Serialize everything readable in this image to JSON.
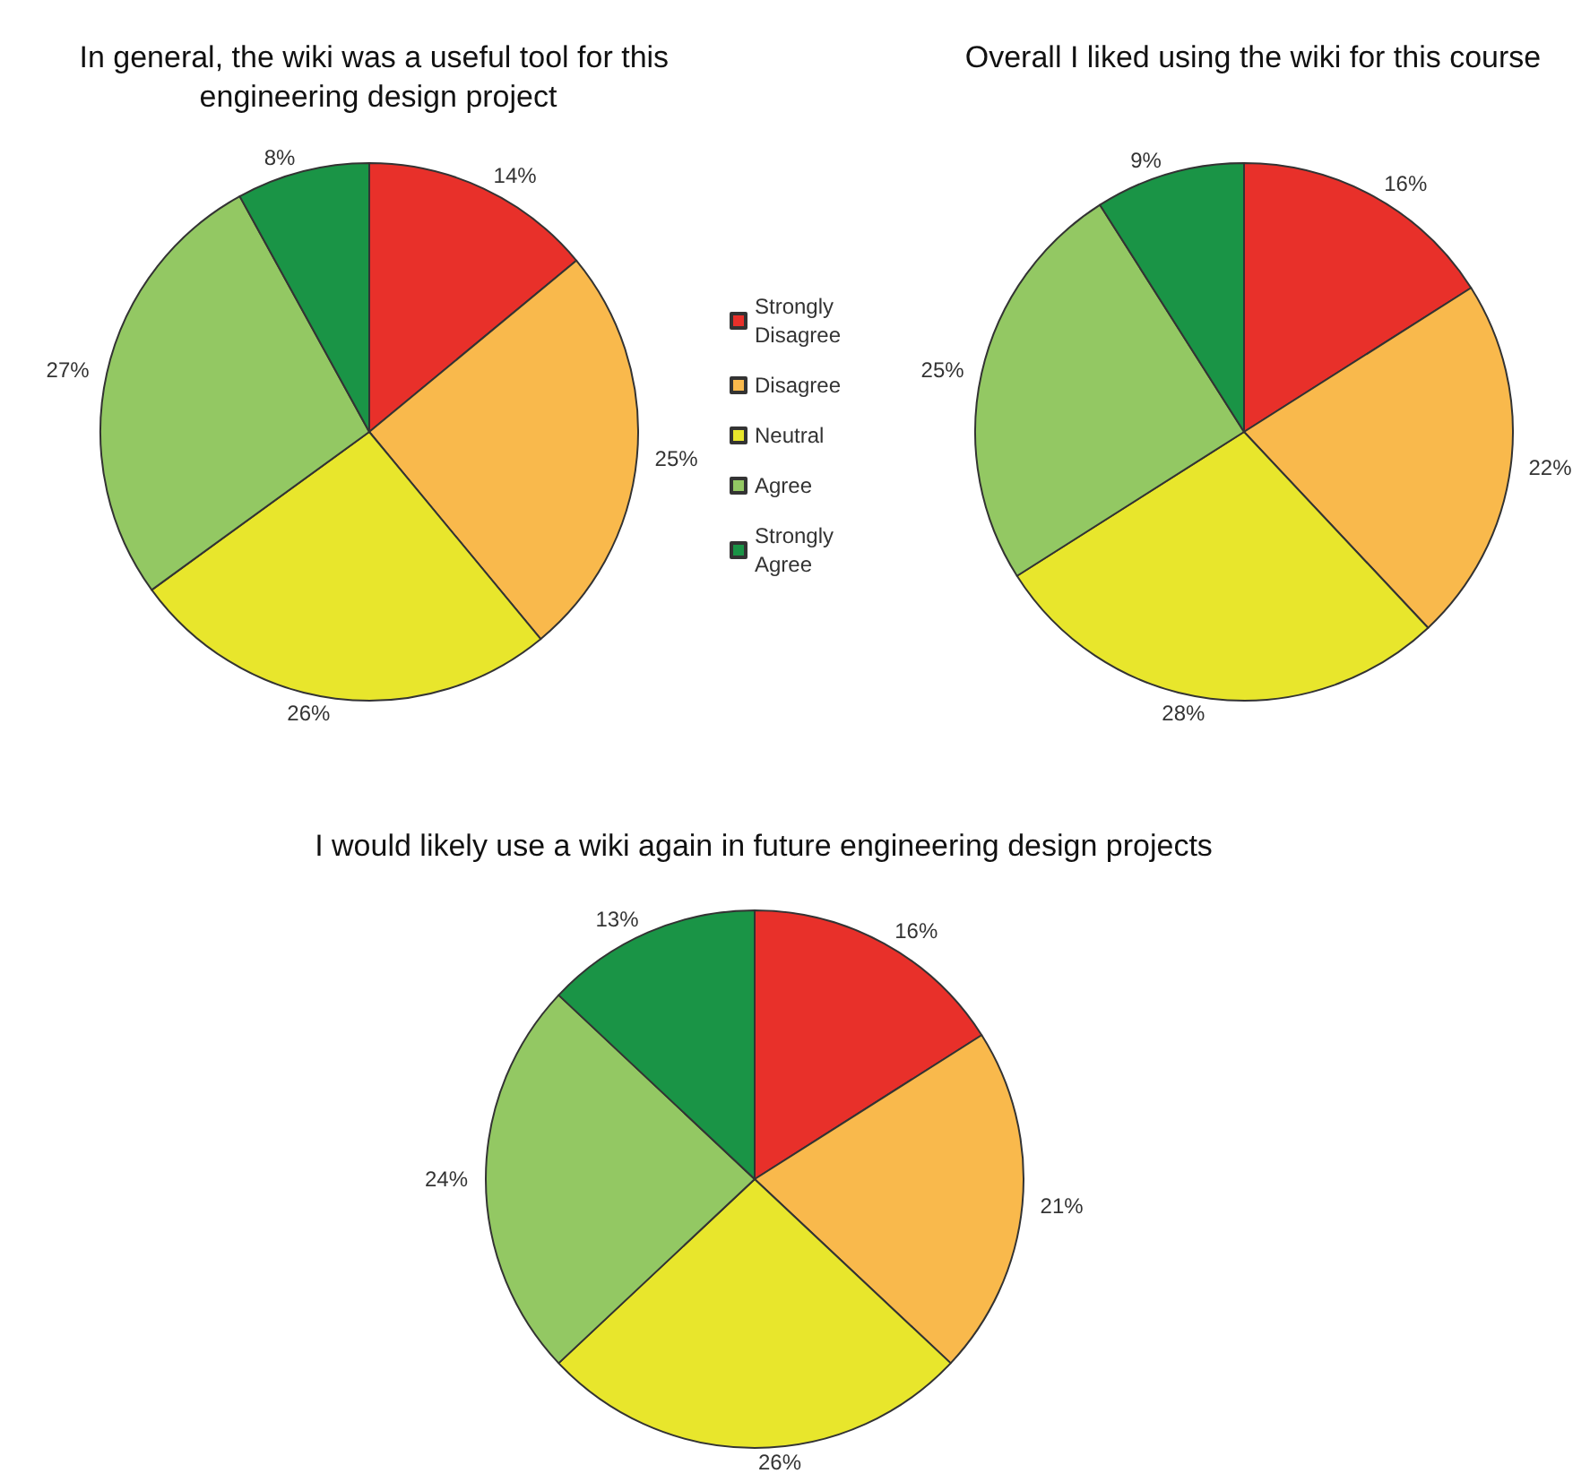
{
  "chart_data": [
    {
      "type": "pie",
      "title": "In general, the wiki was a useful tool for this engineering design project",
      "categories": [
        "Strongly Disagree",
        "Disagree",
        "Neutral",
        "Agree",
        "Strongly Agree"
      ],
      "values": [
        14,
        25,
        26,
        27,
        8
      ],
      "value_labels": [
        "14%",
        "25%",
        "26%",
        "27%",
        "8%"
      ],
      "colors": [
        "#e8302a",
        "#f9b94c",
        "#e8e62c",
        "#93c863",
        "#1a9446"
      ],
      "legend": "right"
    },
    {
      "type": "pie",
      "title": "Overall I liked using the wiki for this course",
      "categories": [
        null,
        null,
        null,
        null,
        null
      ],
      "values": [
        16,
        22,
        28,
        25,
        9
      ],
      "value_labels": [
        "16%",
        "22%",
        "28%",
        "25%",
        "9%"
      ],
      "colors": [
        "#e8302a",
        "#f9b94c",
        "#e8e62c",
        "#93c863",
        "#1a9446"
      ]
    },
    {
      "type": "pie",
      "title": "I would likely use a wiki again in future engineering design projects",
      "categories": [
        null,
        null,
        null,
        null,
        null
      ],
      "values": [
        16,
        21,
        26,
        24,
        13
      ],
      "value_labels": [
        "16%",
        "21%",
        "26%",
        "24%",
        "13%"
      ],
      "colors": [
        "#e8302a",
        "#f9b94c",
        "#e8e62c",
        "#93c863",
        "#1a9446"
      ]
    }
  ]
}
